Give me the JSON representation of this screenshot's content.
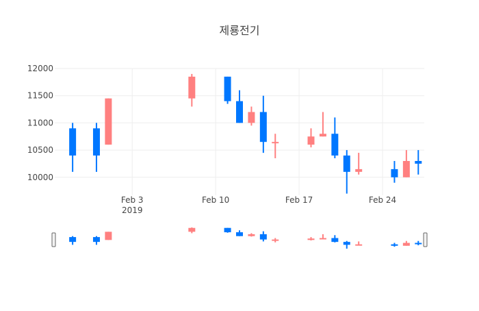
{
  "chart_data": {
    "type": "candlestick",
    "title": "제룡전기",
    "xlabel": "",
    "ylabel": "",
    "ylim": [
      9670,
      12000
    ],
    "y_ticks": [
      10000,
      10500,
      11000,
      11500,
      12000
    ],
    "x_ticks": [
      {
        "date": "2019-02-03",
        "label": "Feb 3",
        "sublabel": "2019"
      },
      {
        "date": "2019-02-10",
        "label": "Feb 10",
        "sublabel": ""
      },
      {
        "date": "2019-02-17",
        "label": "Feb 17",
        "sublabel": ""
      },
      {
        "date": "2019-02-24",
        "label": "Feb 24",
        "sublabel": ""
      }
    ],
    "x_range": [
      "2019-01-28",
      "2019-02-27"
    ],
    "grid": true,
    "rangeslider": true,
    "increasing_color": "#ff8080",
    "decreasing_color": "#0077ff",
    "candles": [
      {
        "date": "2019-01-29",
        "open": 10900,
        "high": 11000,
        "low": 10100,
        "close": 10400
      },
      {
        "date": "2019-01-31",
        "open": 10900,
        "high": 11000,
        "low": 10100,
        "close": 10400
      },
      {
        "date": "2019-02-01",
        "open": 10600,
        "high": 11450,
        "low": 10600,
        "close": 11450
      },
      {
        "date": "2019-02-08",
        "open": 11450,
        "high": 11900,
        "low": 11300,
        "close": 11850
      },
      {
        "date": "2019-02-11",
        "open": 11850,
        "high": 11850,
        "low": 11350,
        "close": 11400
      },
      {
        "date": "2019-02-12",
        "open": 11400,
        "high": 11600,
        "low": 11000,
        "close": 11000
      },
      {
        "date": "2019-02-13",
        "open": 11000,
        "high": 11300,
        "low": 10950,
        "close": 11200
      },
      {
        "date": "2019-02-14",
        "open": 11200,
        "high": 11500,
        "low": 10450,
        "close": 10650
      },
      {
        "date": "2019-02-15",
        "open": 10650,
        "high": 10800,
        "low": 10350,
        "close": 10650
      },
      {
        "date": "2019-02-18",
        "open": 10600,
        "high": 10900,
        "low": 10550,
        "close": 10750
      },
      {
        "date": "2019-02-19",
        "open": 10750,
        "high": 11200,
        "low": 10750,
        "close": 10800
      },
      {
        "date": "2019-02-20",
        "open": 10800,
        "high": 11100,
        "low": 10350,
        "close": 10400
      },
      {
        "date": "2019-02-21",
        "open": 10400,
        "high": 10500,
        "low": 9700,
        "close": 10100
      },
      {
        "date": "2019-02-22",
        "open": 10100,
        "high": 10450,
        "low": 10050,
        "close": 10150
      },
      {
        "date": "2019-02-25",
        "open": 10150,
        "high": 10300,
        "low": 9900,
        "close": 10000
      },
      {
        "date": "2019-02-26",
        "open": 10000,
        "high": 10500,
        "low": 10000,
        "close": 10300
      },
      {
        "date": "2019-02-27",
        "open": 10300,
        "high": 10500,
        "low": 10050,
        "close": 10250
      }
    ]
  }
}
